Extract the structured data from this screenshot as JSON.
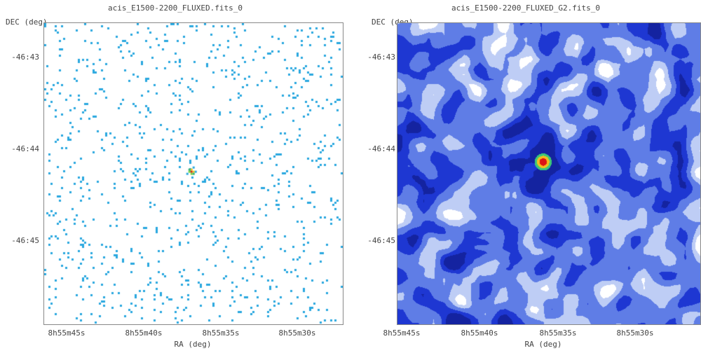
{
  "left_panel": {
    "title": "acis_E1500-2200_FLUXED.fits_0",
    "dec_label": "DEC (deg)",
    "ra_label": "RA (deg)",
    "dec_ticks": [
      "-46:43",
      "-46:44",
      "-46:45"
    ],
    "ra_ticks": [
      "8h55m45s",
      "8h55m40s",
      "8h55m35s",
      "8h55m30s"
    ]
  },
  "right_panel": {
    "title": "acis_E1500-2200_FLUXED_G2.fits_0",
    "dec_label": "DEC (deg)",
    "ra_label": "RA (deg)",
    "dec_ticks": [
      "-46:43",
      "-46:44",
      "-46:45"
    ],
    "ra_ticks": [
      "8h55m45s",
      "8h55m40s",
      "8h55m35s",
      "8h55m30s"
    ]
  },
  "colors": {
    "raw_pixel": "#29a8df",
    "smooth_dark": "#1830c8",
    "smooth_mid": "#6f8ee6",
    "smooth_light": "#c3cff5",
    "source_core": "#d81b1b",
    "source_ring": "#f0c419"
  }
}
